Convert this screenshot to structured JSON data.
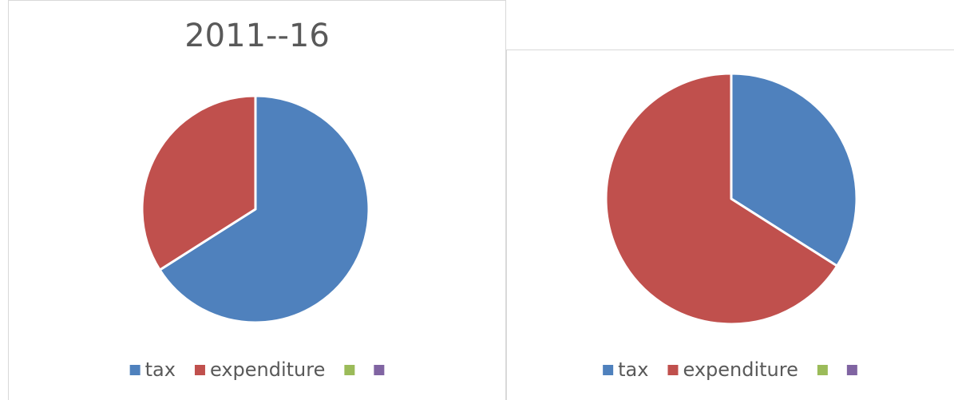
{
  "chart_data": [
    {
      "type": "pie",
      "title": "2011--16",
      "categories": [
        "tax",
        "expenditure",
        null,
        null
      ],
      "values": [
        66,
        34,
        0,
        0
      ],
      "colors": [
        "#4f81bd",
        "#c0504d",
        "#9bbb59",
        "#8064a2"
      ],
      "legend": "bottom"
    },
    {
      "type": "pie",
      "categories": [
        "tax",
        "expenditure",
        null,
        null
      ],
      "values": [
        34,
        66,
        0,
        0
      ],
      "colors": [
        "#4f81bd",
        "#c0504d",
        "#9bbb59",
        "#8064a2"
      ],
      "legend": "bottom"
    }
  ]
}
